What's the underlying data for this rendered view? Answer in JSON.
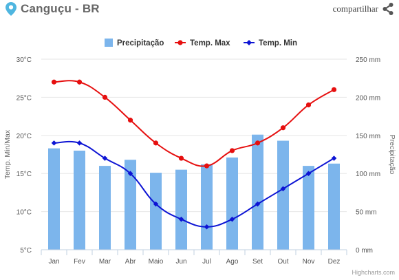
{
  "header": {
    "title": "Canguçu - BR",
    "share_label": "compartilhar",
    "icons": {
      "location": "location-pin-icon",
      "share": "share-icon"
    }
  },
  "credits": "Highcharts.com",
  "chart_data": {
    "type": "bar+line",
    "categories": [
      "Jan",
      "Fev",
      "Mar",
      "Abr",
      "Maio",
      "Jun",
      "Jul",
      "Ago",
      "Set",
      "Out",
      "Nov",
      "Dez"
    ],
    "y_left": {
      "label": "Temp. Min/Max",
      "range": [
        5,
        30
      ],
      "ticks": [
        5,
        10,
        15,
        20,
        25,
        30
      ],
      "tick_suffix": "°C"
    },
    "y_right": {
      "label": "Precipitação",
      "range": [
        0,
        250
      ],
      "ticks": [
        0,
        50,
        100,
        150,
        200,
        250
      ],
      "tick_suffix": " mm"
    },
    "legend_position": "top-center",
    "grid": true,
    "series": [
      {
        "name": "Precipitação",
        "kind": "bar",
        "axis": "right",
        "color": "#7cb5ec",
        "values": [
          133,
          130,
          110,
          118,
          101,
          105,
          112,
          121,
          151,
          143,
          110,
          113
        ]
      },
      {
        "name": "Temp. Max",
        "kind": "line",
        "axis": "left",
        "color": "#e60f0f",
        "values": [
          27,
          27,
          25,
          22,
          19,
          17,
          16,
          18,
          19,
          21,
          24,
          26
        ]
      },
      {
        "name": "Temp. Min",
        "kind": "line",
        "axis": "left",
        "color": "#0d14d4",
        "values": [
          19,
          19,
          17,
          15,
          11,
          9,
          8,
          9,
          11,
          13,
          15,
          17
        ]
      }
    ]
  }
}
